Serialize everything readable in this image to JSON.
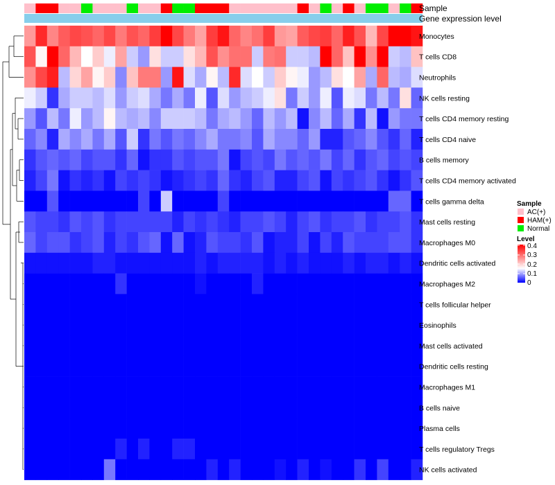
{
  "chart_data": {
    "type": "heatmap",
    "annotation_rows": [
      "Sample",
      "Gene expression level"
    ],
    "row_labels": [
      "Monocytes",
      "T cells CD8",
      "Neutrophils",
      "NK cells resting",
      "T cells CD4 memory resting",
      "T cells CD4 naive",
      "B cells memory",
      "T cells CD4 memory activated",
      "T cells gamma delta",
      "Mast cells resting",
      "Macrophages M0",
      "Dendritic cells activated",
      "Macrophages M2",
      "T cells follicular helper",
      "Eosinophils",
      "Mast cells activated",
      "Dendritic cells resting",
      "Macrophages M1",
      "B cells naive",
      "Plasma cells",
      "T cells regulatory  Tregs",
      "NK cells activated"
    ],
    "sample_groups": [
      "AC(+)",
      "HAM(+)",
      "HAM(+)",
      "AC(+)",
      "AC(+)",
      "Normal",
      "AC(+)",
      "AC(+)",
      "AC(+)",
      "Normal",
      "AC(+)",
      "AC(+)",
      "HAM(+)",
      "Normal",
      "Normal",
      "HAM(+)",
      "HAM(+)",
      "HAM(+)",
      "AC(+)",
      "AC(+)",
      "AC(+)",
      "AC(+)",
      "AC(+)",
      "AC(+)",
      "HAM(+)",
      "AC(+)",
      "Normal",
      "AC(+)",
      "HAM(+)",
      "AC(+)",
      "Normal",
      "Normal",
      "AC(+)",
      "Normal",
      "HAM(+)"
    ],
    "color_scale": {
      "min": 0,
      "max": 0.4,
      "low": "#0000ff",
      "mid": "#ffffff",
      "high": "#ff0000",
      "mid_value": 0.15
    },
    "values": [
      [
        0.25,
        0.36,
        0.27,
        0.31,
        0.33,
        0.32,
        0.3,
        0.33,
        0.28,
        0.32,
        0.3,
        0.34,
        0.4,
        0.33,
        0.28,
        0.24,
        0.34,
        0.38,
        0.3,
        0.27,
        0.29,
        0.34,
        0.25,
        0.24,
        0.31,
        0.33,
        0.34,
        0.3,
        0.37,
        0.32,
        0.22,
        0.33,
        0.4,
        0.4,
        0.38
      ],
      [
        0.32,
        0.16,
        0.4,
        0.3,
        0.22,
        0.15,
        0.2,
        0.14,
        0.24,
        0.12,
        0.09,
        0.18,
        0.12,
        0.12,
        0.18,
        0.22,
        0.32,
        0.26,
        0.29,
        0.29,
        0.12,
        0.28,
        0.29,
        0.12,
        0.12,
        0.11,
        0.4,
        0.3,
        0.21,
        0.4,
        0.26,
        0.4,
        0.12,
        0.11,
        0.21
      ],
      [
        0.26,
        0.33,
        0.37,
        0.11,
        0.19,
        0.24,
        0.16,
        0.2,
        0.08,
        0.21,
        0.28,
        0.28,
        0.09,
        0.38,
        0.13,
        0.1,
        0.16,
        0.11,
        0.36,
        0.13,
        0.15,
        0.12,
        0.2,
        0.16,
        0.14,
        0.09,
        0.11,
        0.18,
        0.15,
        0.24,
        0.1,
        0.3,
        0.11,
        0.1,
        0.13
      ],
      [
        0.14,
        0.12,
        0.03,
        0.1,
        0.12,
        0.12,
        0.11,
        0.13,
        0.09,
        0.12,
        0.13,
        0.1,
        0.07,
        0.1,
        0.07,
        0.14,
        0.05,
        0.13,
        0.09,
        0.11,
        0.12,
        0.14,
        0.18,
        0.07,
        0.12,
        0.09,
        0.14,
        0.05,
        0.14,
        0.13,
        0.07,
        0.11,
        0.07,
        0.18,
        0.06
      ],
      [
        0.09,
        0.05,
        0.11,
        0.07,
        0.14,
        0.09,
        0.11,
        0.16,
        0.11,
        0.1,
        0.11,
        0.08,
        0.12,
        0.12,
        0.12,
        0.11,
        0.07,
        0.1,
        0.11,
        0.09,
        0.06,
        0.11,
        0.09,
        0.11,
        0.01,
        0.08,
        0.11,
        0.06,
        0.1,
        0.03,
        0.11,
        0.01,
        0.09,
        0.07,
        0.07
      ],
      [
        0.06,
        0.08,
        0.02,
        0.1,
        0.08,
        0.1,
        0.07,
        0.1,
        0.05,
        0.12,
        0.03,
        0.07,
        0.05,
        0.07,
        0.06,
        0.08,
        0.1,
        0.07,
        0.07,
        0.08,
        0.05,
        0.1,
        0.08,
        0.08,
        0.06,
        0.09,
        0.02,
        0.02,
        0.05,
        0.06,
        0.08,
        0.05,
        0.03,
        0.06,
        0.02
      ],
      [
        0.03,
        0.05,
        0.06,
        0.05,
        0.06,
        0.04,
        0.05,
        0.05,
        0.03,
        0.06,
        0.01,
        0.03,
        0.03,
        0.05,
        0.04,
        0.05,
        0.05,
        0.07,
        0.01,
        0.04,
        0.05,
        0.04,
        0.07,
        0.05,
        0.06,
        0.05,
        0.07,
        0.04,
        0.06,
        0.03,
        0.05,
        0.06,
        0.04,
        0.05,
        0.04
      ],
      [
        0.02,
        0.04,
        0.07,
        0.01,
        0.03,
        0.02,
        0.03,
        0.01,
        0.04,
        0.03,
        0.04,
        0.03,
        0.01,
        0.02,
        0.03,
        0.04,
        0.03,
        0.06,
        0.03,
        0.02,
        0.04,
        0.05,
        0.02,
        0.02,
        0.04,
        0.05,
        0.01,
        0.04,
        0.03,
        0.04,
        0.05,
        0.03,
        0.01,
        0.03,
        0.05
      ],
      [
        0.0,
        0.0,
        0.05,
        0.0,
        0.0,
        0.0,
        0.0,
        0.0,
        0.0,
        0.0,
        0.04,
        0.0,
        0.12,
        0.0,
        0.0,
        0.0,
        0.0,
        0.04,
        0.0,
        0.0,
        0.0,
        0.0,
        0.0,
        0.0,
        0.0,
        0.0,
        0.0,
        0.0,
        0.0,
        0.0,
        0.0,
        0.0,
        0.06,
        0.06,
        0.0
      ],
      [
        0.05,
        0.04,
        0.04,
        0.03,
        0.05,
        0.04,
        0.05,
        0.03,
        0.04,
        0.04,
        0.04,
        0.04,
        0.04,
        0.02,
        0.04,
        0.03,
        0.04,
        0.03,
        0.02,
        0.04,
        0.04,
        0.05,
        0.04,
        0.02,
        0.04,
        0.05,
        0.03,
        0.04,
        0.04,
        0.05,
        0.03,
        0.04,
        0.04,
        0.05,
        0.03
      ],
      [
        0.06,
        0.04,
        0.05,
        0.05,
        0.03,
        0.04,
        0.05,
        0.02,
        0.04,
        0.03,
        0.05,
        0.06,
        0.01,
        0.06,
        0.01,
        0.02,
        0.05,
        0.04,
        0.04,
        0.03,
        0.05,
        0.01,
        0.02,
        0.02,
        0.04,
        0.01,
        0.04,
        0.02,
        0.05,
        0.04,
        0.04,
        0.04,
        0.05,
        0.05,
        0.03
      ],
      [
        0.01,
        0.01,
        0.01,
        0.01,
        0.01,
        0.01,
        0.02,
        0.02,
        0.01,
        0.01,
        0.01,
        0.01,
        0.01,
        0.01,
        0.01,
        0.02,
        0.01,
        0.02,
        0.02,
        0.02,
        0.02,
        0.01,
        0.02,
        0.01,
        0.02,
        0.01,
        0.01,
        0.01,
        0.02,
        0.01,
        0.02,
        0.02,
        0.01,
        0.02,
        0.01
      ],
      [
        0.0,
        0.0,
        0.0,
        0.0,
        0.0,
        0.0,
        0.0,
        0.0,
        0.03,
        0.0,
        0.0,
        0.0,
        0.0,
        0.0,
        0.0,
        0.01,
        0.0,
        0.0,
        0.0,
        0.0,
        0.02,
        0.0,
        0.0,
        0.0,
        0.0,
        0.0,
        0.0,
        0.0,
        0.0,
        0.0,
        0.0,
        0.0,
        0.0,
        0.0,
        0.0
      ],
      [
        0.0,
        0.0,
        0.0,
        0.0,
        0.0,
        0.0,
        0.0,
        0.0,
        0.0,
        0.0,
        0.0,
        0.0,
        0.0,
        0.0,
        0.0,
        0.0,
        0.0,
        0.0,
        0.0,
        0.0,
        0.0,
        0.0,
        0.0,
        0.0,
        0.0,
        0.0,
        0.0,
        0.0,
        0.0,
        0.0,
        0.0,
        0.0,
        0.0,
        0.0,
        0.0
      ],
      [
        0.0,
        0.0,
        0.0,
        0.0,
        0.0,
        0.0,
        0.0,
        0.0,
        0.0,
        0.0,
        0.0,
        0.0,
        0.0,
        0.0,
        0.0,
        0.0,
        0.0,
        0.0,
        0.0,
        0.0,
        0.0,
        0.0,
        0.0,
        0.0,
        0.0,
        0.0,
        0.0,
        0.0,
        0.0,
        0.0,
        0.0,
        0.0,
        0.0,
        0.0,
        0.0
      ],
      [
        0.0,
        0.0,
        0.0,
        0.0,
        0.0,
        0.0,
        0.0,
        0.0,
        0.0,
        0.0,
        0.0,
        0.0,
        0.0,
        0.0,
        0.0,
        0.0,
        0.0,
        0.0,
        0.0,
        0.0,
        0.0,
        0.0,
        0.0,
        0.0,
        0.0,
        0.0,
        0.0,
        0.0,
        0.0,
        0.0,
        0.0,
        0.0,
        0.0,
        0.0,
        0.0
      ],
      [
        0.0,
        0.0,
        0.0,
        0.0,
        0.0,
        0.0,
        0.0,
        0.0,
        0.0,
        0.0,
        0.0,
        0.0,
        0.0,
        0.0,
        0.0,
        0.0,
        0.0,
        0.0,
        0.0,
        0.0,
        0.0,
        0.0,
        0.0,
        0.0,
        0.0,
        0.0,
        0.0,
        0.0,
        0.0,
        0.0,
        0.0,
        0.0,
        0.0,
        0.0,
        0.0
      ],
      [
        0.0,
        0.0,
        0.0,
        0.0,
        0.0,
        0.0,
        0.0,
        0.0,
        0.0,
        0.0,
        0.0,
        0.0,
        0.0,
        0.0,
        0.0,
        0.0,
        0.0,
        0.0,
        0.0,
        0.0,
        0.0,
        0.0,
        0.0,
        0.0,
        0.0,
        0.0,
        0.0,
        0.0,
        0.0,
        0.0,
        0.0,
        0.0,
        0.0,
        0.0,
        0.0
      ],
      [
        0.0,
        0.0,
        0.0,
        0.0,
        0.0,
        0.0,
        0.0,
        0.0,
        0.0,
        0.0,
        0.0,
        0.0,
        0.0,
        0.0,
        0.0,
        0.0,
        0.0,
        0.0,
        0.0,
        0.0,
        0.0,
        0.0,
        0.0,
        0.0,
        0.0,
        0.0,
        0.0,
        0.0,
        0.0,
        0.0,
        0.0,
        0.0,
        0.0,
        0.0,
        0.0
      ],
      [
        0.0,
        0.0,
        0.0,
        0.0,
        0.0,
        0.0,
        0.0,
        0.0,
        0.0,
        0.0,
        0.0,
        0.0,
        0.0,
        0.0,
        0.0,
        0.0,
        0.0,
        0.0,
        0.0,
        0.0,
        0.0,
        0.0,
        0.0,
        0.0,
        0.0,
        0.0,
        0.0,
        0.0,
        0.0,
        0.0,
        0.0,
        0.0,
        0.0,
        0.0,
        0.0
      ],
      [
        0.0,
        0.0,
        0.0,
        0.0,
        0.0,
        0.0,
        0.0,
        0.0,
        0.02,
        0.0,
        0.02,
        0.0,
        0.0,
        0.02,
        0.02,
        0.0,
        0.0,
        0.0,
        0.0,
        0.0,
        0.0,
        0.0,
        0.0,
        0.0,
        0.0,
        0.0,
        0.0,
        0.0,
        0.0,
        0.0,
        0.0,
        0.0,
        0.0,
        0.0,
        0.0
      ],
      [
        0.0,
        0.0,
        0.0,
        0.0,
        0.0,
        0.0,
        0.0,
        0.07,
        0.0,
        0.0,
        0.0,
        0.0,
        0.0,
        0.0,
        0.0,
        0.0,
        0.02,
        0.0,
        0.02,
        0.0,
        0.0,
        0.0,
        0.01,
        0.0,
        0.02,
        0.0,
        0.01,
        0.0,
        0.0,
        0.03,
        0.0,
        0.04,
        0.0,
        0.0,
        0.02
      ]
    ],
    "legend": {
      "sample": {
        "title": "Sample",
        "entries": [
          {
            "label": "AC(+)",
            "color": "#ffc0cb"
          },
          {
            "label": "HAM(+)",
            "color": "#ff0000"
          },
          {
            "label": "Normal",
            "color": "#00ee00"
          }
        ]
      },
      "level": {
        "title": "Level",
        "ticks": [
          "0.4",
          "0.3",
          "0.2",
          "0.1",
          "0"
        ]
      }
    },
    "expression_level_color": "#87ceeb"
  }
}
